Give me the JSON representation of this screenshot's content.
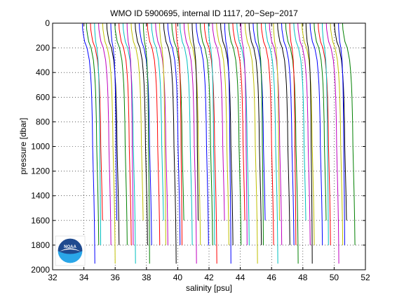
{
  "chart_data": {
    "type": "line",
    "title": "WMO ID 5900695, internal ID 1117, 20−Sep−2017",
    "xlabel": "salinity [psu]",
    "ylabel": "pressure [dbar]",
    "xlim": [
      32,
      52
    ],
    "ylim": [
      0,
      2000
    ],
    "y_reversed": true,
    "grid": true,
    "grid_style": "dotted",
    "x_ticks": [
      32,
      34,
      36,
      38,
      40,
      42,
      44,
      46,
      48,
      50,
      52
    ],
    "y_ticks": [
      0,
      200,
      400,
      600,
      800,
      1000,
      1200,
      1400,
      1600,
      1800,
      2000
    ],
    "x_tick_labels": [
      "32",
      "34",
      "36",
      "38",
      "40",
      "42",
      "44",
      "46",
      "48",
      "50",
      "52"
    ],
    "y_tick_labels": [
      "0",
      "200",
      "400",
      "600",
      "800",
      "1000",
      "1200",
      "1400",
      "1600",
      "1800",
      "2000"
    ],
    "series_note": "waterfall of salinity profiles, each successive profile offset in salinity",
    "series_colors": [
      "#0000ff",
      "#008000",
      "#ff0000",
      "#00bfbf",
      "#bf00bf",
      "#bfbf00",
      "#000000"
    ],
    "profile_count": 65,
    "first_profile_surface_salinity": 33.9,
    "profile_offset_psu": 0.26,
    "profile_shape": {
      "pressure": [
        0,
        50,
        100,
        150,
        200,
        300,
        400,
        500,
        600,
        700,
        800,
        900,
        1000,
        1200,
        1400,
        1600,
        1800,
        1950
      ],
      "salinity_anomaly": [
        0.0,
        0.02,
        0.08,
        0.15,
        0.3,
        0.45,
        0.52,
        0.57,
        0.6,
        0.62,
        0.64,
        0.65,
        0.66,
        0.7,
        0.74,
        0.77,
        0.79,
        0.8
      ]
    }
  },
  "logo": {
    "name": "noaa-logo",
    "text": "NOAA"
  }
}
